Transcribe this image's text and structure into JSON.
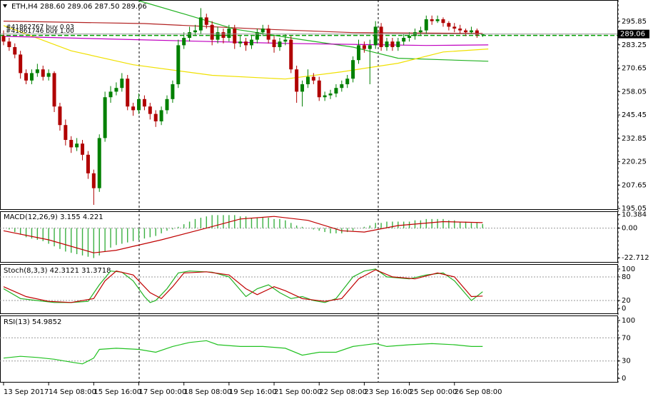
{
  "chart_data": [
    {
      "type": "candlestick",
      "title": "ETH,H4  288.60 289.06 287.50 289.06",
      "up_color": "#008000",
      "down_color": "#b00000",
      "xlim": [
        -0.63,
        108.9
      ],
      "xticks": [
        {
          "value": 0,
          "label": "13 Sep 2017"
        },
        {
          "value": 8,
          "label": "14 Sep 08:00"
        },
        {
          "value": 16,
          "label": "15 Sep 16:00"
        },
        {
          "value": 24,
          "label": "17 Sep 00:00"
        },
        {
          "value": 32,
          "label": "18 Sep 08:00"
        },
        {
          "value": 40,
          "label": "19 Sep 16:00"
        },
        {
          "value": 48,
          "label": "21 Sep 00:00"
        },
        {
          "value": 56,
          "label": "22 Sep 08:00"
        },
        {
          "value": 64,
          "label": "23 Sep 16:00"
        },
        {
          "value": 72,
          "label": "25 Sep 00:00"
        },
        {
          "value": 80,
          "label": "26 Sep 08:00"
        }
      ],
      "ylim": [
        194.7,
        307
      ],
      "yticks": [
        195.05,
        207.65,
        220.25,
        232.85,
        245.45,
        258.05,
        270.65,
        283.25,
        295.85
      ],
      "ohlc": [
        [
          288,
          291,
          283,
          285
        ],
        [
          285,
          287,
          280,
          282
        ],
        [
          282,
          284,
          276,
          278
        ],
        [
          278,
          280,
          265,
          268
        ],
        [
          268,
          270,
          262,
          264
        ],
        [
          264,
          270,
          262,
          268
        ],
        [
          268,
          273,
          266,
          270
        ],
        [
          270,
          272,
          264,
          266
        ],
        [
          266,
          270,
          264,
          268
        ],
        [
          268,
          269,
          247,
          250
        ],
        [
          250,
          252,
          237,
          240
        ],
        [
          240,
          243,
          229,
          232
        ],
        [
          232,
          234,
          225,
          228
        ],
        [
          228,
          233,
          226,
          230
        ],
        [
          230,
          232,
          221,
          224
        ],
        [
          224,
          226,
          211,
          214
        ],
        [
          214,
          216,
          197,
          206
        ],
        [
          206,
          235,
          204,
          233
        ],
        [
          233,
          258,
          231,
          255
        ],
        [
          255,
          261,
          252,
          258
        ],
        [
          258,
          263,
          256,
          260
        ],
        [
          260,
          268,
          258,
          265
        ],
        [
          265,
          267,
          248,
          250
        ],
        [
          250,
          252,
          245,
          248
        ],
        [
          248,
          257,
          246,
          254
        ],
        [
          254,
          256,
          248,
          250
        ],
        [
          250,
          252,
          243,
          246
        ],
        [
          246,
          248,
          239,
          242
        ],
        [
          242,
          250,
          240,
          248
        ],
        [
          248,
          256,
          246,
          254
        ],
        [
          254,
          264,
          252,
          262
        ],
        [
          262,
          286,
          260,
          283
        ],
        [
          283,
          290,
          281,
          287
        ],
        [
          287,
          293,
          285,
          290
        ],
        [
          290,
          294,
          288,
          291
        ],
        [
          291,
          303,
          289,
          298
        ],
        [
          298,
          300,
          292,
          294
        ],
        [
          294,
          296,
          283,
          286
        ],
        [
          286,
          293,
          284,
          290
        ],
        [
          290,
          292,
          284,
          287
        ],
        [
          287,
          294,
          285,
          292
        ],
        [
          292,
          294,
          281,
          284
        ],
        [
          284,
          288,
          282,
          285
        ],
        [
          285,
          287,
          280,
          283
        ],
        [
          283,
          288,
          281,
          286
        ],
        [
          286,
          292,
          284,
          290
        ],
        [
          290,
          294,
          288,
          292
        ],
        [
          292,
          294,
          284,
          286
        ],
        [
          286,
          288,
          279,
          282
        ],
        [
          282,
          287,
          280,
          285
        ],
        [
          285,
          289,
          283,
          286
        ],
        [
          286,
          288,
          268,
          270
        ],
        [
          270,
          272,
          252,
          258
        ],
        [
          258,
          264,
          250,
          262
        ],
        [
          262,
          270,
          260,
          266
        ],
        [
          266,
          268,
          262,
          264
        ],
        [
          264,
          266,
          253,
          255
        ],
        [
          255,
          258,
          253,
          256
        ],
        [
          256,
          259,
          254,
          257
        ],
        [
          257,
          262,
          255,
          260
        ],
        [
          260,
          264,
          258,
          262
        ],
        [
          262,
          267,
          260,
          265
        ],
        [
          265,
          277,
          263,
          275
        ],
        [
          275,
          286,
          273,
          283
        ],
        [
          283,
          285,
          279,
          281
        ],
        [
          281,
          286,
          262,
          283
        ],
        [
          283,
          296,
          281,
          293
        ],
        [
          293,
          295,
          280,
          282
        ],
        [
          282,
          287,
          280,
          285
        ],
        [
          285,
          287,
          280,
          282
        ],
        [
          282,
          287,
          280,
          285
        ],
        [
          285,
          289,
          283,
          287
        ],
        [
          287,
          290,
          285,
          288
        ],
        [
          288,
          292,
          286,
          290
        ],
        [
          290,
          293,
          288,
          291
        ],
        [
          291,
          299,
          289,
          297
        ],
        [
          297,
          299,
          294,
          296
        ],
        [
          296,
          299,
          295,
          297
        ],
        [
          297,
          298,
          293,
          295
        ],
        [
          295,
          296,
          291,
          293
        ],
        [
          293,
          295,
          290,
          292
        ],
        [
          292,
          294,
          289,
          291
        ],
        [
          291,
          292,
          288,
          290
        ],
        [
          290,
          293,
          289,
          291
        ],
        [
          291,
          292,
          287,
          288.6
        ],
        [
          288.6,
          289.06,
          287.5,
          289.06
        ]
      ],
      "series": [
        {
          "color": "#b22222",
          "x": [
            0,
            25,
            46,
            62,
            85
          ],
          "values": [
            296,
            294.7,
            291.7,
            289.8,
            289.4
          ]
        },
        {
          "color": "#22b222",
          "x": [
            24,
            33,
            41,
            53,
            62,
            70,
            86
          ],
          "values": [
            307,
            299,
            291.7,
            286,
            282,
            276,
            274.4
          ]
        },
        {
          "color": "#f0e000",
          "x": [
            0,
            12,
            23,
            37,
            50,
            60,
            70,
            78,
            86
          ],
          "values": [
            293.6,
            280,
            272.5,
            266.8,
            264.8,
            268.7,
            273.3,
            279.4,
            281
          ]
        },
        {
          "color": "#c000c0",
          "x": [
            0,
            25,
            50,
            75,
            86
          ],
          "values": [
            287.8,
            285.9,
            284,
            282.9,
            283.2
          ]
        }
      ],
      "orders": [
        {
          "label": "#41861746 buy 1.00",
          "price": 288.4,
          "color": "#00a000"
        },
        {
          "label": "#41862767 buy 0.03",
          "price": 288.2,
          "color": "#00a000"
        }
      ]
    },
    {
      "type": "macd",
      "title": "MACD(12,26,9) 3.155 4.221",
      "ylim": [
        -26,
        12.4
      ],
      "yticks": [
        -22.712,
        {
          "value": 0,
          "label": "0.00"
        },
        10.384
      ],
      "levels": [
        0
      ],
      "series": [
        {
          "type": "bar",
          "color": "#3cb043",
          "values": [
            0,
            -1,
            -3,
            -5,
            -7,
            -8,
            -9,
            -10,
            -12,
            -14,
            -16,
            -18,
            -19,
            -20,
            -21,
            -22,
            -23,
            -21,
            -18,
            -15,
            -13,
            -12,
            -11,
            -10,
            -9,
            -8,
            -7,
            -6,
            -4,
            -2,
            -1,
            1,
            3,
            5,
            7,
            8,
            9,
            10,
            10,
            10,
            10,
            10,
            9,
            9,
            8,
            8,
            8,
            8,
            7,
            7,
            6,
            4,
            2,
            1,
            0,
            -1,
            -2,
            -3,
            -4,
            -4,
            -4,
            -3,
            -2,
            0,
            1,
            2,
            4,
            4,
            5,
            5,
            5,
            5,
            5,
            6,
            6,
            7,
            7,
            7,
            7,
            6,
            6,
            5,
            5,
            4,
            4,
            3.155
          ]
        },
        {
          "type": "line",
          "color": "#c00000",
          "x": [
            0,
            8,
            16,
            20,
            28,
            36,
            42,
            48,
            54,
            60,
            64,
            70,
            78,
            85
          ],
          "values": [
            -2,
            -9,
            -19,
            -17,
            -9,
            0,
            7,
            9,
            6,
            -2,
            -3,
            2,
            5,
            4.221
          ]
        }
      ]
    },
    {
      "type": "line",
      "title": "Stoch(8,3,3) 42.3121 31.3718",
      "ylim": [
        -12.5,
        110.7
      ],
      "yticks": [
        0,
        20,
        80,
        100
      ],
      "levels": [
        20,
        80
      ],
      "series": [
        {
          "color": "#22b222",
          "x": [
            0,
            3,
            6,
            9,
            12,
            15,
            17,
            19,
            21,
            23,
            25,
            26,
            27,
            29,
            31,
            33,
            37,
            40,
            43,
            45,
            47,
            49,
            51,
            53,
            55,
            57,
            59,
            62,
            64,
            66,
            68,
            72,
            75,
            78,
            80,
            83,
            85
          ],
          "values": [
            50,
            25,
            20,
            15,
            15,
            18,
            60,
            95,
            92,
            70,
            30,
            15,
            20,
            50,
            90,
            95,
            92,
            80,
            30,
            50,
            60,
            40,
            25,
            30,
            20,
            15,
            25,
            80,
            95,
            100,
            80,
            75,
            85,
            90,
            70,
            20,
            42.3121
          ]
        },
        {
          "color": "#c00000",
          "x": [
            0,
            4,
            8,
            12,
            16,
            18,
            20,
            23,
            26,
            28,
            30,
            32,
            36,
            40,
            43,
            45,
            48,
            50,
            53,
            57,
            60,
            63,
            66,
            69,
            73,
            77,
            80,
            83,
            85
          ],
          "values": [
            55,
            30,
            18,
            15,
            25,
            70,
            95,
            85,
            40,
            25,
            55,
            90,
            93,
            85,
            50,
            35,
            55,
            45,
            25,
            18,
            25,
            75,
            98,
            80,
            75,
            90,
            80,
            30,
            31.3718
          ]
        }
      ]
    },
    {
      "type": "line",
      "title": "RSI(13) 54.9852",
      "ylim": [
        -6.1,
        107.3
      ],
      "yticks": [
        0,
        30,
        70,
        100
      ],
      "levels": [
        30,
        70
      ],
      "series": [
        {
          "color": "#22c222",
          "x": [
            0,
            3,
            6,
            9,
            12,
            14,
            16,
            17,
            20,
            24,
            27,
            30,
            33,
            36,
            38,
            42,
            46,
            50,
            53,
            56,
            59,
            62,
            66,
            68,
            72,
            76,
            80,
            83,
            85
          ],
          "values": [
            35,
            38,
            36,
            33,
            28,
            25,
            35,
            50,
            52,
            50,
            45,
            55,
            62,
            65,
            58,
            55,
            55,
            52,
            40,
            45,
            45,
            55,
            60,
            55,
            58,
            60,
            58,
            55,
            54.9852
          ]
        }
      ]
    }
  ]
}
